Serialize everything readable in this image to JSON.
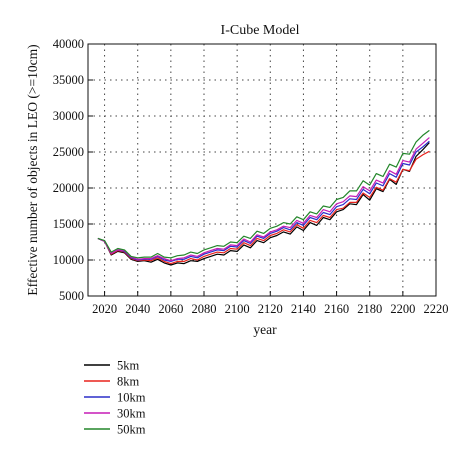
{
  "chart_data": {
    "type": "line",
    "title": "I-Cube Model",
    "xlabel": "year",
    "ylabel": "Effective number of objects in LEO (>=10cm)",
    "xlim": [
      2010,
      2220
    ],
    "ylim": [
      5000,
      40000
    ],
    "xticks": [
      2020,
      2040,
      2060,
      2080,
      2100,
      2120,
      2140,
      2160,
      2180,
      2200,
      2220
    ],
    "yticks": [
      5000,
      10000,
      15000,
      20000,
      25000,
      30000,
      35000,
      40000
    ],
    "grid": true,
    "legend_position": "below",
    "x": [
      2016,
      2020,
      2024,
      2028,
      2032,
      2036,
      2040,
      2044,
      2048,
      2052,
      2056,
      2060,
      2064,
      2068,
      2072,
      2076,
      2080,
      2084,
      2088,
      2092,
      2096,
      2100,
      2104,
      2108,
      2112,
      2116,
      2120,
      2124,
      2128,
      2132,
      2136,
      2140,
      2144,
      2148,
      2152,
      2156,
      2160,
      2164,
      2168,
      2172,
      2176,
      2180,
      2184,
      2188,
      2192,
      2196,
      2200,
      2204,
      2208,
      2212,
      2216
    ],
    "series": [
      {
        "name": "5km",
        "color": "#000000",
        "values": [
          13000,
          12600,
          10700,
          11200,
          11000,
          10100,
          9800,
          9900,
          9700,
          10100,
          9600,
          9300,
          9600,
          9500,
          9900,
          9800,
          10200,
          10500,
          10800,
          10700,
          11300,
          11200,
          12100,
          11700,
          12700,
          12400,
          13100,
          13400,
          13900,
          13600,
          14600,
          14100,
          15200,
          14800,
          15900,
          15600,
          16700,
          17000,
          17800,
          17700,
          19100,
          18300,
          19900,
          19500,
          21200,
          20500,
          22600,
          22300,
          24400,
          25300,
          26300
        ]
      },
      {
        "name": "8km",
        "color": "#e8221c",
        "values": [
          13000,
          12600,
          10800,
          11300,
          11100,
          10200,
          9900,
          10000,
          9900,
          10300,
          9800,
          9500,
          9800,
          9800,
          10200,
          10000,
          10500,
          10800,
          11100,
          11000,
          11600,
          11500,
          12400,
          12000,
          13000,
          12700,
          13400,
          13700,
          14200,
          13900,
          14900,
          14400,
          15500,
          15200,
          16200,
          15900,
          17000,
          17200,
          18000,
          18000,
          19300,
          18700,
          20100,
          19700,
          21300,
          20800,
          22600,
          22400,
          24000,
          24600,
          25100
        ]
      },
      {
        "name": "10km",
        "color": "#2c2ec9",
        "values": [
          13000,
          12600,
          10900,
          11400,
          11200,
          10300,
          10000,
          10100,
          10100,
          10500,
          10000,
          9800,
          10100,
          10100,
          10500,
          10300,
          10800,
          11100,
          11400,
          11300,
          11900,
          11800,
          12700,
          12300,
          13300,
          13000,
          13700,
          14000,
          14500,
          14200,
          15200,
          14800,
          15900,
          15600,
          16600,
          16300,
          17400,
          17700,
          18500,
          18400,
          19800,
          19200,
          20700,
          20300,
          22000,
          21500,
          23400,
          23200,
          25000,
          25700,
          26500
        ]
      },
      {
        "name": "30km",
        "color": "#c51bb5",
        "values": [
          13000,
          12600,
          10900,
          11400,
          11300,
          10400,
          10100,
          10200,
          10200,
          10600,
          10200,
          9900,
          10200,
          10300,
          10700,
          10500,
          11000,
          11300,
          11600,
          11500,
          12100,
          12000,
          12900,
          12500,
          13500,
          13200,
          13900,
          14200,
          14700,
          14500,
          15500,
          15100,
          16200,
          15900,
          17000,
          16700,
          17800,
          18100,
          18900,
          18800,
          20200,
          19600,
          21100,
          20700,
          22400,
          21900,
          23800,
          23600,
          25400,
          26200,
          27000
        ]
      },
      {
        "name": "50km",
        "color": "#23862a",
        "values": [
          13000,
          12700,
          11100,
          11600,
          11400,
          10500,
          10300,
          10400,
          10400,
          10900,
          10400,
          10300,
          10600,
          10700,
          11100,
          10900,
          11400,
          11700,
          12000,
          11900,
          12500,
          12400,
          13300,
          13000,
          14000,
          13700,
          14400,
          14700,
          15200,
          15000,
          16000,
          15600,
          16700,
          16400,
          17500,
          17300,
          18400,
          18700,
          19600,
          19600,
          21000,
          20400,
          22000,
          21600,
          23300,
          22900,
          24800,
          24700,
          26400,
          27300,
          28000
        ]
      }
    ]
  }
}
